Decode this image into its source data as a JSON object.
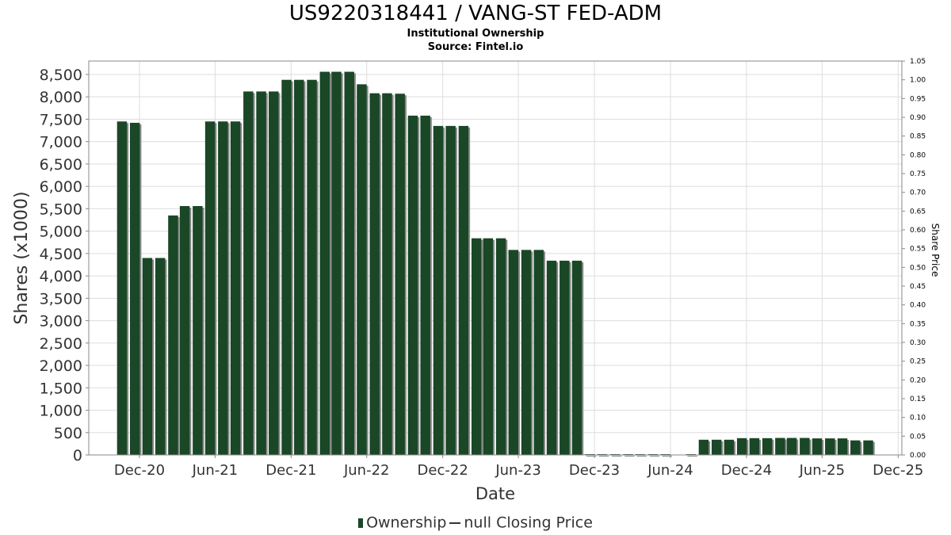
{
  "chart_data": {
    "type": "bar",
    "title": "US9220318441 / VANG-ST FED-ADM",
    "subtitle": "Institutional Ownership",
    "source": "Source: Fintel.io",
    "xlabel": "Date",
    "ylabel": "Shares (x1000)",
    "y2label": "Share Price",
    "ylim": [
      0,
      8800
    ],
    "y2lim": [
      0,
      1.05
    ],
    "xlim": [
      "2020-08-01",
      "2025-12-10"
    ],
    "yticks": [
      0,
      500,
      1000,
      1500,
      2000,
      2500,
      3000,
      3500,
      4000,
      4500,
      5000,
      5500,
      6000,
      6500,
      7000,
      7500,
      8000,
      8500
    ],
    "ytick_labels": [
      "0",
      "500",
      "1,000",
      "1,500",
      "2,000",
      "2,500",
      "3,000",
      "3,500",
      "4,000",
      "4,500",
      "5,000",
      "5,500",
      "6,000",
      "6,500",
      "7,000",
      "7,500",
      "8,000",
      "8,500"
    ],
    "y2ticks": [
      "0.00",
      "0.05",
      "0.10",
      "0.15",
      "0.20",
      "0.25",
      "0.30",
      "0.35",
      "0.40",
      "0.45",
      "0.50",
      "0.55",
      "0.60",
      "0.65",
      "0.70",
      "0.75",
      "0.80",
      "0.85",
      "0.90",
      "0.95",
      "1.00",
      "1.05"
    ],
    "xticks": [
      {
        "label": "Dec-20",
        "date": "2020-12-01"
      },
      {
        "label": "Jun-21",
        "date": "2021-06-01"
      },
      {
        "label": "Dec-21",
        "date": "2021-12-01"
      },
      {
        "label": "Jun-22",
        "date": "2022-06-01"
      },
      {
        "label": "Dec-22",
        "date": "2022-12-01"
      },
      {
        "label": "Jun-23",
        "date": "2023-06-01"
      },
      {
        "label": "Dec-23",
        "date": "2023-12-01"
      },
      {
        "label": "Jun-24",
        "date": "2024-06-01"
      },
      {
        "label": "Dec-24",
        "date": "2024-12-01"
      },
      {
        "label": "Jun-25",
        "date": "2025-06-01"
      },
      {
        "label": "Dec-25",
        "date": "2025-12-01"
      }
    ],
    "grid": true,
    "legend_position": "bottom",
    "colors": {
      "bar": "#1a4726",
      "bar_shadow": "#8a8a8a",
      "grid": "#dddddd",
      "axis": "#888888"
    },
    "series": [
      {
        "name": "Ownership",
        "points": [
          {
            "x": "2020-10-20",
            "y": 7450
          },
          {
            "x": "2020-11-20",
            "y": 7420
          },
          {
            "x": "2020-12-20",
            "y": 4400
          },
          {
            "x": "2021-01-20",
            "y": 4400
          },
          {
            "x": "2021-02-20",
            "y": 5350
          },
          {
            "x": "2021-03-20",
            "y": 5560
          },
          {
            "x": "2021-04-20",
            "y": 5560
          },
          {
            "x": "2021-05-20",
            "y": 7450
          },
          {
            "x": "2021-06-20",
            "y": 7450
          },
          {
            "x": "2021-07-20",
            "y": 7450
          },
          {
            "x": "2021-08-20",
            "y": 8120
          },
          {
            "x": "2021-09-20",
            "y": 8120
          },
          {
            "x": "2021-10-20",
            "y": 8120
          },
          {
            "x": "2021-11-20",
            "y": 8380
          },
          {
            "x": "2021-12-20",
            "y": 8380
          },
          {
            "x": "2022-01-20",
            "y": 8380
          },
          {
            "x": "2022-02-20",
            "y": 8560
          },
          {
            "x": "2022-03-20",
            "y": 8560
          },
          {
            "x": "2022-04-20",
            "y": 8560
          },
          {
            "x": "2022-05-20",
            "y": 8280
          },
          {
            "x": "2022-06-20",
            "y": 8080
          },
          {
            "x": "2022-07-20",
            "y": 8080
          },
          {
            "x": "2022-08-20",
            "y": 8070
          },
          {
            "x": "2022-09-20",
            "y": 7580
          },
          {
            "x": "2022-10-20",
            "y": 7580
          },
          {
            "x": "2022-11-20",
            "y": 7350
          },
          {
            "x": "2022-12-20",
            "y": 7350
          },
          {
            "x": "2023-01-20",
            "y": 7350
          },
          {
            "x": "2023-02-20",
            "y": 4840
          },
          {
            "x": "2023-03-20",
            "y": 4840
          },
          {
            "x": "2023-04-20",
            "y": 4840
          },
          {
            "x": "2023-05-20",
            "y": 4580
          },
          {
            "x": "2023-06-20",
            "y": 4580
          },
          {
            "x": "2023-07-20",
            "y": 4580
          },
          {
            "x": "2023-08-20",
            "y": 4340
          },
          {
            "x": "2023-09-20",
            "y": 4340
          },
          {
            "x": "2023-10-20",
            "y": 4340
          },
          {
            "x": "2023-11-20",
            "y": 15
          },
          {
            "x": "2023-12-20",
            "y": 15
          },
          {
            "x": "2024-01-20",
            "y": 15
          },
          {
            "x": "2024-02-20",
            "y": 15
          },
          {
            "x": "2024-03-20",
            "y": 15
          },
          {
            "x": "2024-04-20",
            "y": 15
          },
          {
            "x": "2024-05-20",
            "y": 15
          },
          {
            "x": "2024-07-20",
            "y": 5
          },
          {
            "x": "2024-08-20",
            "y": 340
          },
          {
            "x": "2024-09-20",
            "y": 340
          },
          {
            "x": "2024-10-20",
            "y": 340
          },
          {
            "x": "2024-11-20",
            "y": 375
          },
          {
            "x": "2024-12-20",
            "y": 375
          },
          {
            "x": "2025-01-20",
            "y": 375
          },
          {
            "x": "2025-02-20",
            "y": 380
          },
          {
            "x": "2025-03-20",
            "y": 380
          },
          {
            "x": "2025-04-20",
            "y": 380
          },
          {
            "x": "2025-05-20",
            "y": 370
          },
          {
            "x": "2025-06-20",
            "y": 370
          },
          {
            "x": "2025-07-20",
            "y": 370
          },
          {
            "x": "2025-08-20",
            "y": 325
          },
          {
            "x": "2025-09-20",
            "y": 325
          }
        ]
      }
    ],
    "legend": {
      "ownership": "Ownership",
      "price": "null Closing Price"
    }
  }
}
